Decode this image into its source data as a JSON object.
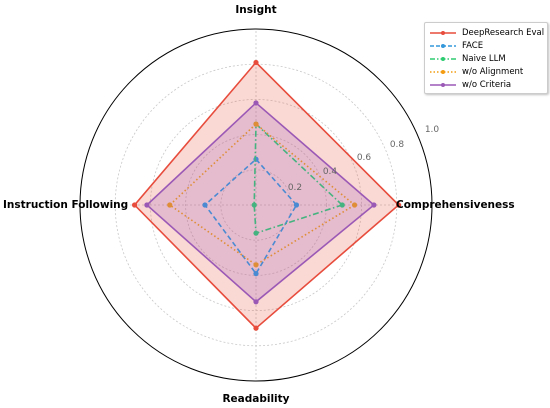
{
  "chart_data": {
    "type": "radar",
    "axes": [
      "Comprehensiveness",
      "Insight",
      "Instruction Following",
      "Readability"
    ],
    "rlim": [
      0,
      1.0
    ],
    "ticks": [
      "0.2",
      "0.4",
      "0.6",
      "0.8",
      "1.0"
    ],
    "grid": true,
    "legend_position": "top-right",
    "series": [
      {
        "name": "DeepResearch Eval",
        "values": [
          0.81,
          0.81,
          0.69,
          0.7
        ],
        "color": "#e74c3c",
        "linestyle": "solid",
        "filled": true
      },
      {
        "name": "FACE",
        "values": [
          0.23,
          0.26,
          0.29,
          0.39
        ],
        "color": "#3498db",
        "linestyle": "dashed",
        "filled": false
      },
      {
        "name": "Naive LLM",
        "values": [
          0.49,
          0.46,
          0.01,
          0.16
        ],
        "color": "#2ecc71",
        "linestyle": "dashdot",
        "filled": false
      },
      {
        "name": "w/o Alignment",
        "values": [
          0.56,
          0.46,
          0.49,
          0.34
        ],
        "color": "#f39c12",
        "linestyle": "dotted",
        "filled": false
      },
      {
        "name": "w/o Criteria",
        "values": [
          0.67,
          0.58,
          0.62,
          0.55
        ],
        "color": "#9b59b6",
        "linestyle": "solid",
        "filled": true
      }
    ]
  }
}
